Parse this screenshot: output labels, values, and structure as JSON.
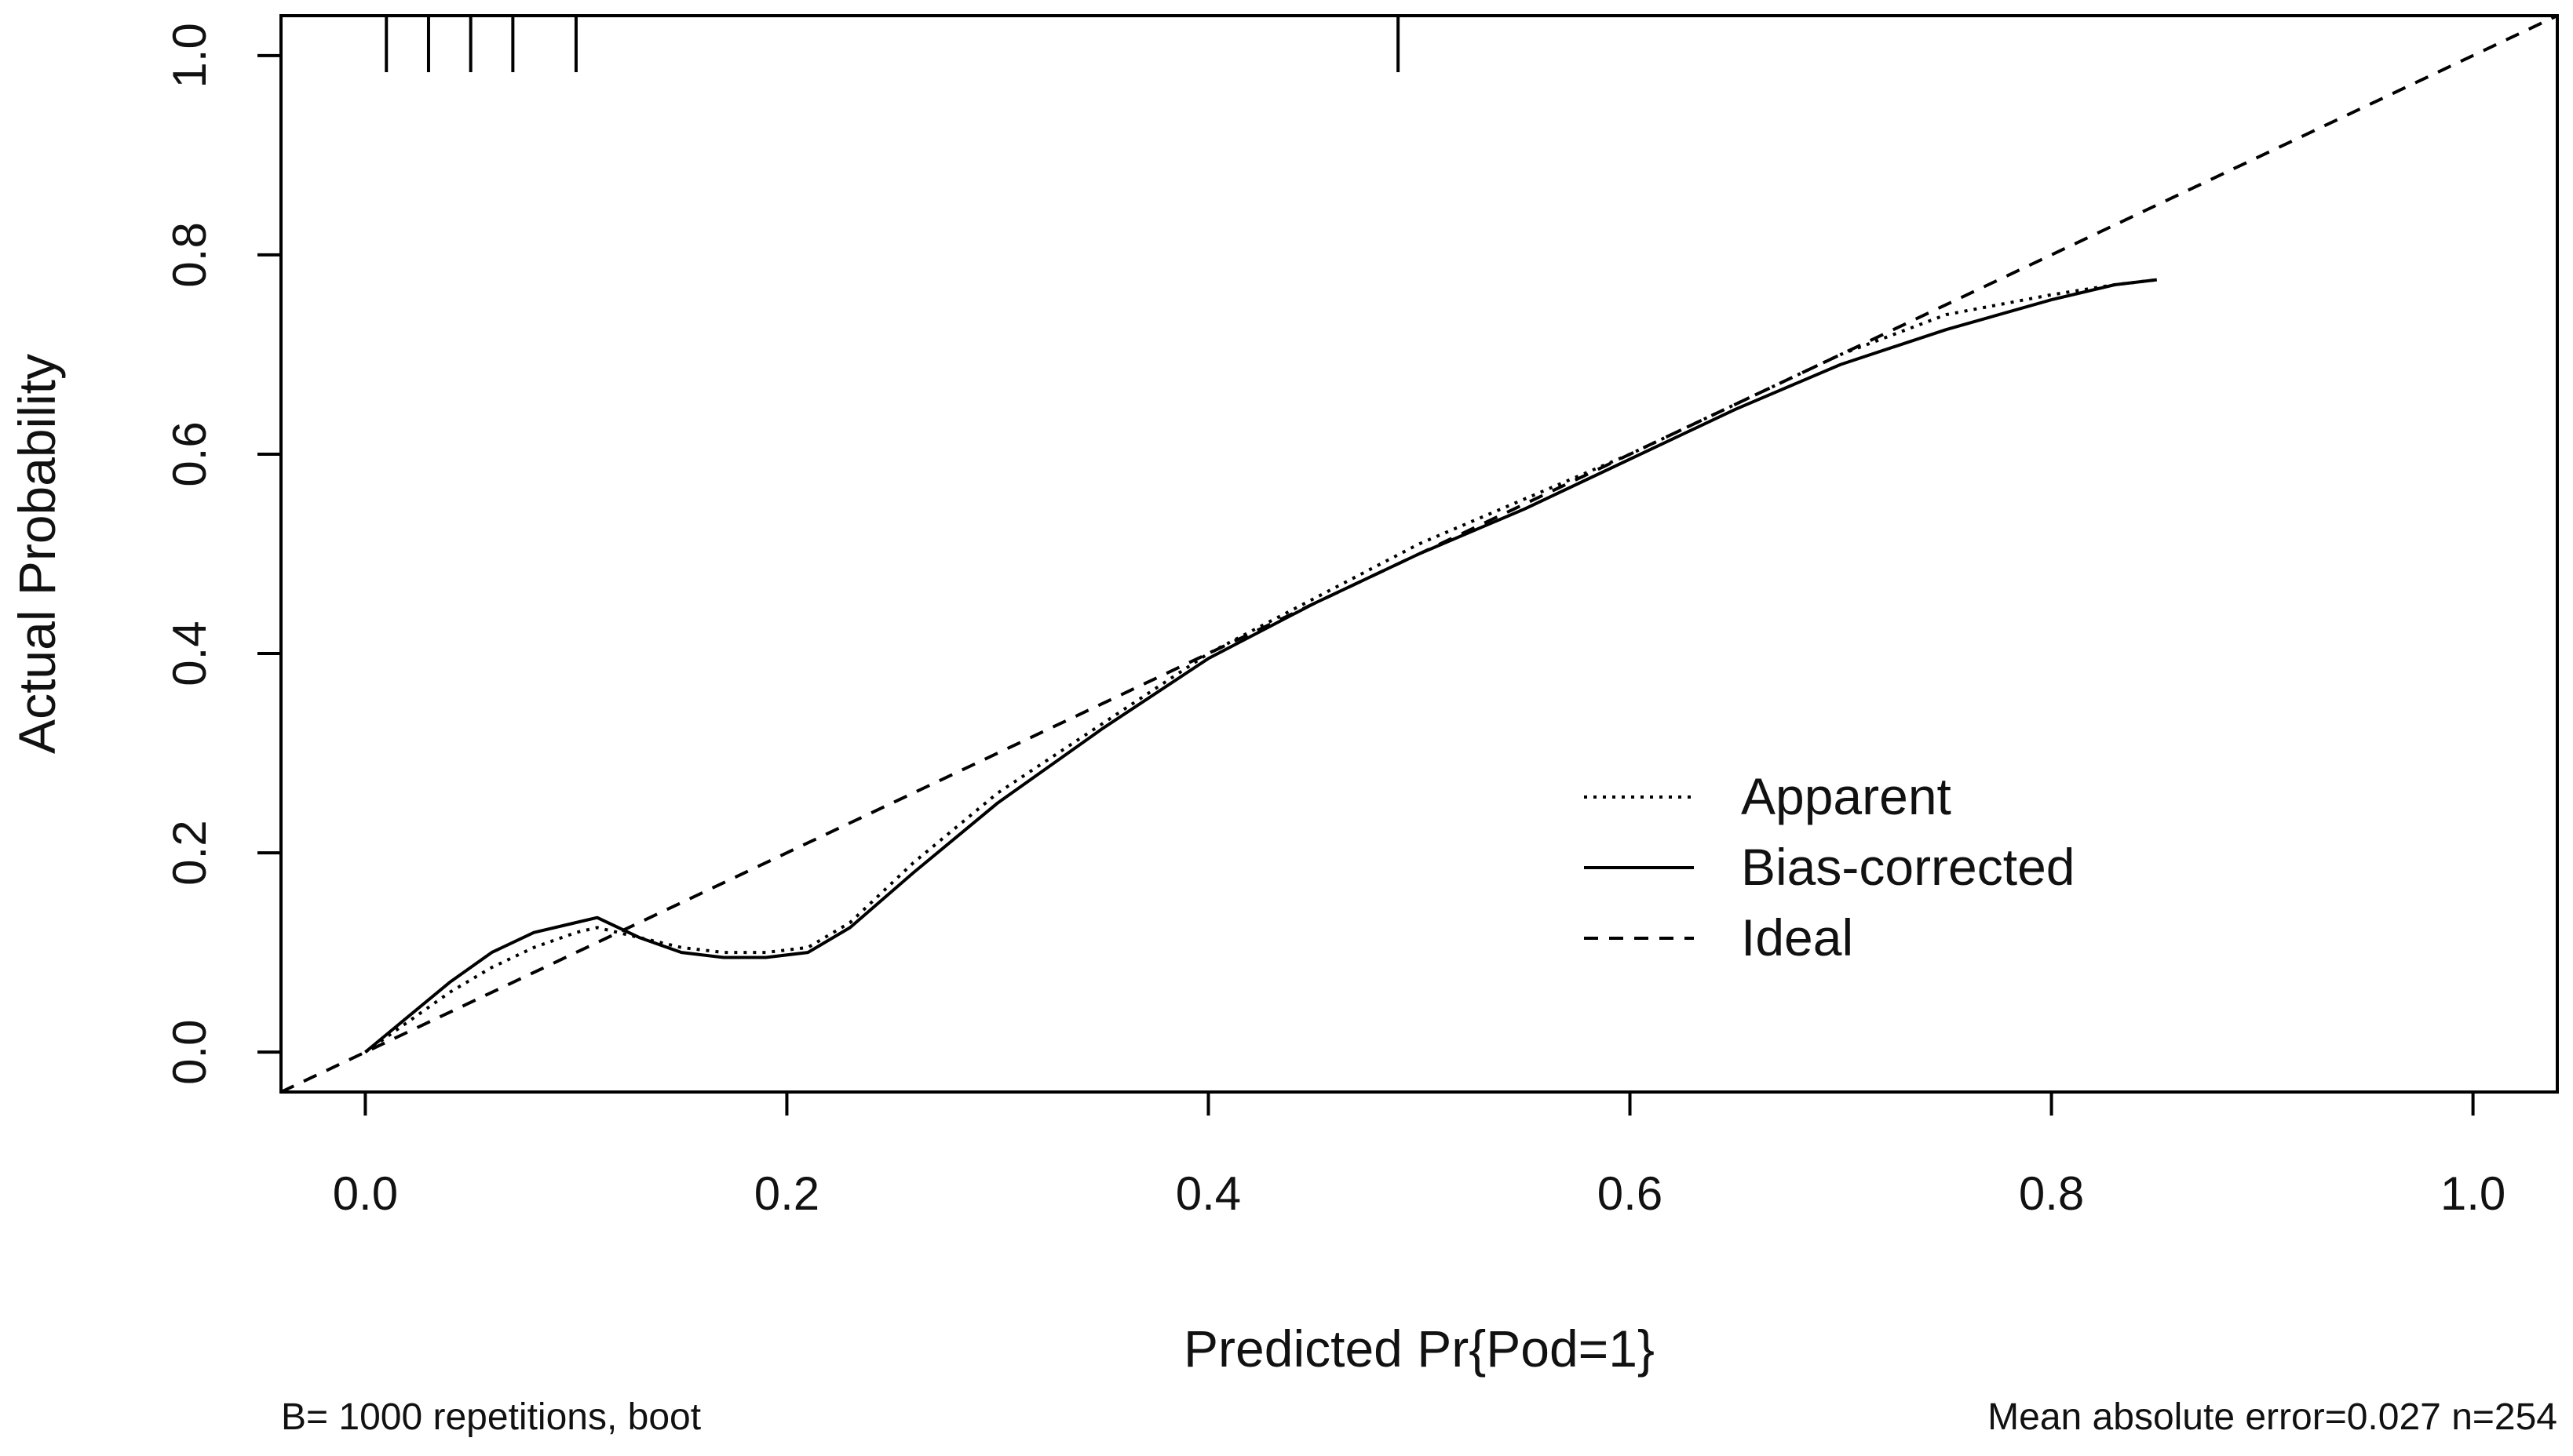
{
  "chart_data": {
    "type": "line",
    "title": "",
    "xlabel": "Predicted Pr{Pod=1}",
    "ylabel": "Actual Probability",
    "xlim": [
      -0.04,
      1.04
    ],
    "ylim": [
      -0.04,
      1.04
    ],
    "x_ticks": [
      "0.0",
      "0.2",
      "0.4",
      "0.6",
      "0.8",
      "1.0"
    ],
    "y_ticks": [
      "0.0",
      "0.2",
      "0.4",
      "0.6",
      "0.8",
      "1.0"
    ],
    "grid": false,
    "legend_position": "bottom-right",
    "rug_x": [
      0.01,
      0.03,
      0.05,
      0.07,
      0.1,
      0.49
    ],
    "series": [
      {
        "name": "Apparent",
        "style": "dotted",
        "x": [
          0.0,
          0.02,
          0.04,
          0.06,
          0.08,
          0.1,
          0.11,
          0.13,
          0.15,
          0.17,
          0.19,
          0.21,
          0.23,
          0.26,
          0.3,
          0.35,
          0.4,
          0.45,
          0.5,
          0.55,
          0.6,
          0.65,
          0.7,
          0.75,
          0.8,
          0.83,
          0.85
        ],
        "y": [
          0.0,
          0.03,
          0.06,
          0.085,
          0.105,
          0.12,
          0.125,
          0.115,
          0.105,
          0.1,
          0.1,
          0.105,
          0.13,
          0.19,
          0.26,
          0.33,
          0.4,
          0.455,
          0.51,
          0.555,
          0.6,
          0.65,
          0.7,
          0.74,
          0.76,
          0.77,
          0.775
        ]
      },
      {
        "name": "Bias-corrected",
        "style": "solid",
        "x": [
          0.0,
          0.02,
          0.04,
          0.06,
          0.08,
          0.1,
          0.11,
          0.13,
          0.15,
          0.17,
          0.19,
          0.21,
          0.23,
          0.26,
          0.3,
          0.35,
          0.4,
          0.45,
          0.5,
          0.55,
          0.6,
          0.65,
          0.7,
          0.75,
          0.8,
          0.83,
          0.85
        ],
        "y": [
          0.0,
          0.035,
          0.07,
          0.1,
          0.12,
          0.13,
          0.135,
          0.115,
          0.1,
          0.095,
          0.095,
          0.1,
          0.125,
          0.18,
          0.25,
          0.325,
          0.395,
          0.45,
          0.5,
          0.545,
          0.595,
          0.645,
          0.69,
          0.725,
          0.755,
          0.77,
          0.775
        ]
      },
      {
        "name": "Ideal",
        "style": "dashed",
        "x": [
          -0.04,
          1.04
        ],
        "y": [
          -0.04,
          1.04
        ]
      }
    ],
    "annotations": {
      "left": "B= 1000 repetitions, boot",
      "right": "Mean absolute error=0.027 n=254"
    }
  }
}
